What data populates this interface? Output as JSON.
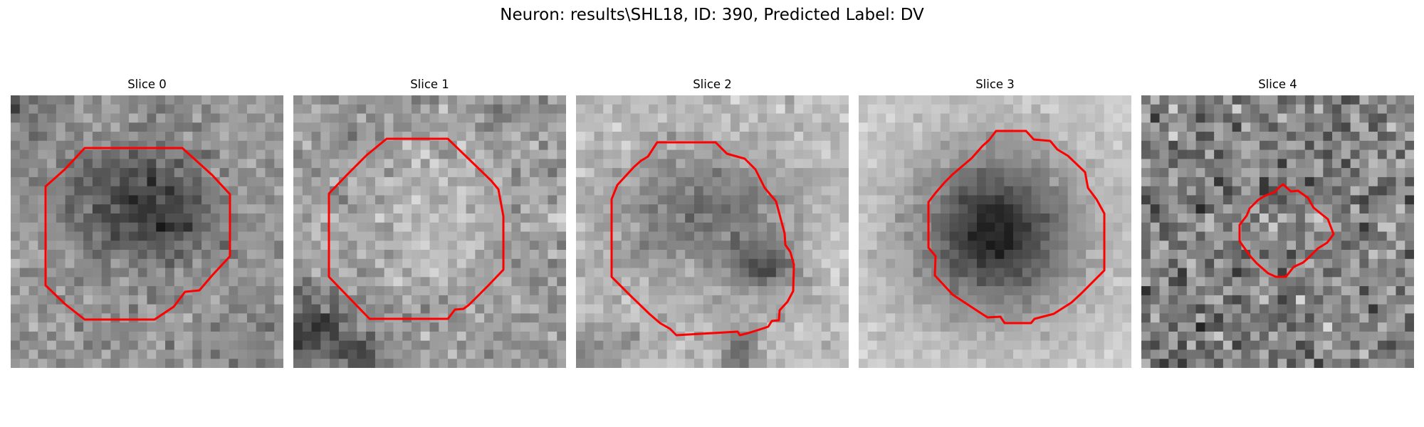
{
  "figure": {
    "suptitle": "Neuron: results\\SHL18, ID: 390, Predicted Label: DV"
  },
  "colors": {
    "contour": "#ff0000",
    "background": "#ffffff"
  },
  "panels": [
    {
      "title": "Slice 0"
    },
    {
      "title": "Slice 1"
    },
    {
      "title": "Slice 2"
    },
    {
      "title": "Slice 3"
    },
    {
      "title": "Slice 4"
    }
  ]
}
